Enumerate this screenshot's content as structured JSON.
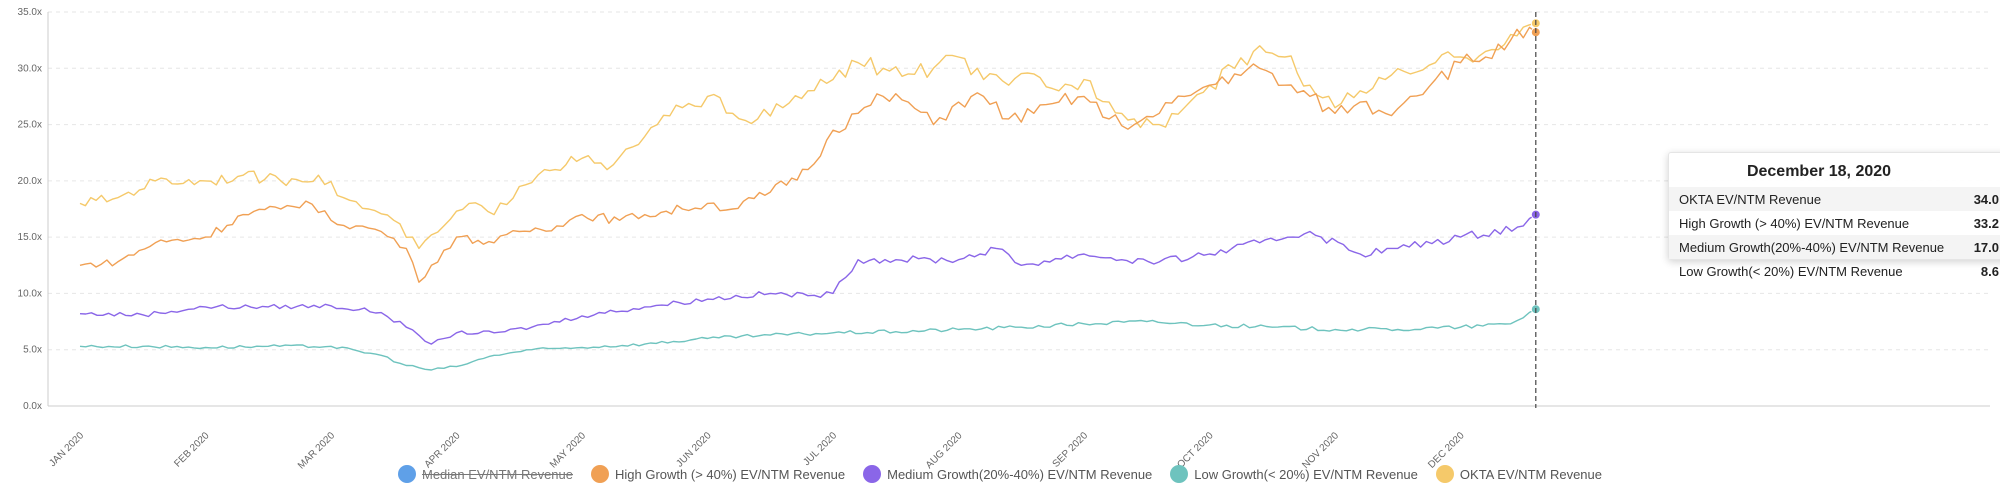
{
  "chart_data": {
    "type": "line",
    "title": "",
    "xlabel": "",
    "ylabel": "",
    "ylim": [
      0,
      35
    ],
    "y_ticks": [
      "0.0x",
      "5.0x",
      "10.0x",
      "15.0x",
      "20.0x",
      "25.0x",
      "30.0x",
      "35.0x"
    ],
    "x_ticks": [
      "JAN 2020",
      "FEB 2020",
      "MAR 2020",
      "APR 2020",
      "MAY 2020",
      "JUN 2020",
      "JUL 2020",
      "AUG 2020",
      "SEP 2020",
      "OCT 2020",
      "NOV 2020",
      "DEC 2020"
    ],
    "grid": true,
    "x_start_month": 0,
    "x_end_month": 11.6,
    "series": [
      {
        "name": "Median EV/NTM Revenue",
        "color": "#5fa0e8",
        "visible": false,
        "values": []
      },
      {
        "name": "High Growth (> 40%) EV/NTM Revenue",
        "color": "#f0a054",
        "visible": true,
        "values": [
          [
            0,
            12.5
          ],
          [
            0.3,
            12.8
          ],
          [
            0.6,
            14.5
          ],
          [
            1.0,
            15.0
          ],
          [
            1.3,
            17.0
          ],
          [
            1.6,
            17.5
          ],
          [
            1.8,
            18.2
          ],
          [
            2.0,
            16.5
          ],
          [
            2.2,
            16.0
          ],
          [
            2.4,
            15.5
          ],
          [
            2.6,
            14.0
          ],
          [
            2.7,
            11.0
          ],
          [
            2.8,
            12.5
          ],
          [
            3.0,
            15.0
          ],
          [
            3.3,
            14.5
          ],
          [
            3.5,
            15.5
          ],
          [
            3.8,
            16.0
          ],
          [
            4.0,
            17.0
          ],
          [
            4.3,
            16.5
          ],
          [
            4.5,
            17.0
          ],
          [
            4.8,
            17.5
          ],
          [
            5.0,
            18.0
          ],
          [
            5.2,
            17.5
          ],
          [
            5.5,
            19.0
          ],
          [
            5.8,
            21.0
          ],
          [
            6.0,
            24.5
          ],
          [
            6.2,
            26.0
          ],
          [
            6.4,
            27.5
          ],
          [
            6.6,
            27.0
          ],
          [
            6.8,
            25.0
          ],
          [
            7.0,
            27.0
          ],
          [
            7.2,
            27.5
          ],
          [
            7.4,
            25.5
          ],
          [
            7.6,
            26.0
          ],
          [
            7.8,
            27.0
          ],
          [
            8.0,
            27.5
          ],
          [
            8.2,
            25.5
          ],
          [
            8.4,
            25.0
          ],
          [
            8.6,
            26.0
          ],
          [
            8.8,
            27.5
          ],
          [
            9.0,
            28.5
          ],
          [
            9.2,
            29.5
          ],
          [
            9.4,
            30.0
          ],
          [
            9.6,
            28.5
          ],
          [
            9.8,
            27.5
          ],
          [
            10.0,
            26.0
          ],
          [
            10.2,
            27.0
          ],
          [
            10.4,
            26.0
          ],
          [
            10.6,
            27.5
          ],
          [
            10.8,
            29.0
          ],
          [
            11.0,
            30.5
          ],
          [
            11.2,
            31.0
          ],
          [
            11.4,
            32.5
          ],
          [
            11.6,
            33.2
          ]
        ]
      },
      {
        "name": "Medium Growth(20%-40%) EV/NTM Revenue",
        "color": "#8a66e8",
        "visible": true,
        "values": [
          [
            0,
            8.2
          ],
          [
            0.5,
            8.1
          ],
          [
            1.0,
            8.8
          ],
          [
            1.5,
            8.8
          ],
          [
            2.0,
            8.9
          ],
          [
            2.4,
            8.3
          ],
          [
            2.6,
            7.0
          ],
          [
            2.8,
            5.5
          ],
          [
            3.0,
            6.5
          ],
          [
            3.3,
            6.5
          ],
          [
            3.6,
            7.0
          ],
          [
            4.0,
            8.0
          ],
          [
            4.5,
            8.8
          ],
          [
            5.0,
            9.5
          ],
          [
            5.5,
            10.0
          ],
          [
            5.8,
            9.8
          ],
          [
            6.0,
            10.0
          ],
          [
            6.2,
            13.0
          ],
          [
            6.5,
            13.0
          ],
          [
            7.0,
            13.0
          ],
          [
            7.3,
            14.0
          ],
          [
            7.5,
            12.5
          ],
          [
            8.0,
            13.5
          ],
          [
            8.3,
            13.0
          ],
          [
            8.6,
            12.8
          ],
          [
            9.0,
            13.5
          ],
          [
            9.4,
            14.5
          ],
          [
            9.8,
            15.5
          ],
          [
            10.2,
            13.5
          ],
          [
            10.5,
            14.0
          ],
          [
            11.0,
            15.0
          ],
          [
            11.5,
            16.0
          ],
          [
            11.6,
            17.0
          ]
        ]
      },
      {
        "name": "Low Growth(< 20%) EV/NTM Revenue",
        "color": "#6ec3be",
        "visible": true,
        "values": [
          [
            0,
            5.3
          ],
          [
            0.5,
            5.3
          ],
          [
            1.0,
            5.2
          ],
          [
            1.5,
            5.3
          ],
          [
            2.0,
            5.3
          ],
          [
            2.4,
            4.5
          ],
          [
            2.6,
            3.6
          ],
          [
            2.8,
            3.2
          ],
          [
            3.0,
            3.5
          ],
          [
            3.3,
            4.5
          ],
          [
            3.6,
            5.0
          ],
          [
            4.0,
            5.2
          ],
          [
            4.5,
            5.5
          ],
          [
            5.0,
            6.0
          ],
          [
            5.5,
            6.3
          ],
          [
            6.0,
            6.5
          ],
          [
            6.5,
            6.6
          ],
          [
            7.0,
            6.8
          ],
          [
            7.5,
            7.0
          ],
          [
            8.0,
            7.3
          ],
          [
            8.5,
            7.5
          ],
          [
            9.0,
            7.2
          ],
          [
            9.5,
            7.0
          ],
          [
            10.0,
            6.8
          ],
          [
            10.5,
            6.8
          ],
          [
            11.0,
            7.0
          ],
          [
            11.4,
            7.3
          ],
          [
            11.6,
            8.6
          ]
        ]
      },
      {
        "name": "OKTA EV/NTM Revenue",
        "color": "#f5c96a",
        "visible": true,
        "values": [
          [
            0,
            18.0
          ],
          [
            0.3,
            18.5
          ],
          [
            0.6,
            20.0
          ],
          [
            1.0,
            20.0
          ],
          [
            1.3,
            20.5
          ],
          [
            1.6,
            20.0
          ],
          [
            1.9,
            20.5
          ],
          [
            2.1,
            18.5
          ],
          [
            2.3,
            17.5
          ],
          [
            2.5,
            16.5
          ],
          [
            2.7,
            14.0
          ],
          [
            2.9,
            16.0
          ],
          [
            3.1,
            18.0
          ],
          [
            3.3,
            17.0
          ],
          [
            3.5,
            19.5
          ],
          [
            3.7,
            21.0
          ],
          [
            4.0,
            22.0
          ],
          [
            4.2,
            21.0
          ],
          [
            4.4,
            23.0
          ],
          [
            4.6,
            25.0
          ],
          [
            4.8,
            26.5
          ],
          [
            5.0,
            27.5
          ],
          [
            5.2,
            26.0
          ],
          [
            5.4,
            25.5
          ],
          [
            5.6,
            26.5
          ],
          [
            5.8,
            28.0
          ],
          [
            6.0,
            29.0
          ],
          [
            6.2,
            30.5
          ],
          [
            6.4,
            30.0
          ],
          [
            6.6,
            29.5
          ],
          [
            6.8,
            30.0
          ],
          [
            7.0,
            31.0
          ],
          [
            7.2,
            29.0
          ],
          [
            7.4,
            28.5
          ],
          [
            7.6,
            29.5
          ],
          [
            7.8,
            28.0
          ],
          [
            8.0,
            29.0
          ],
          [
            8.2,
            27.0
          ],
          [
            8.4,
            25.5
          ],
          [
            8.6,
            25.0
          ],
          [
            8.8,
            26.5
          ],
          [
            9.0,
            28.5
          ],
          [
            9.2,
            30.0
          ],
          [
            9.4,
            32.0
          ],
          [
            9.6,
            31.0
          ],
          [
            9.8,
            28.5
          ],
          [
            10.0,
            26.5
          ],
          [
            10.2,
            28.0
          ],
          [
            10.4,
            29.0
          ],
          [
            10.6,
            29.5
          ],
          [
            10.8,
            30.5
          ],
          [
            11.0,
            31.0
          ],
          [
            11.2,
            31.5
          ],
          [
            11.4,
            33.0
          ],
          [
            11.6,
            34.0
          ]
        ]
      }
    ],
    "crosshair_month": 11.6
  },
  "legend": {
    "items": [
      {
        "label": "Median EV/NTM Revenue",
        "color": "#5fa0e8"
      },
      {
        "label": "High Growth (> 40%) EV/NTM Revenue",
        "color": "#f0a054"
      },
      {
        "label": "Medium Growth(20%-40%) EV/NTM Revenue",
        "color": "#8a66e8"
      },
      {
        "label": "Low Growth(< 20%) EV/NTM Revenue",
        "color": "#6ec3be"
      },
      {
        "label": "OKTA EV/NTM Revenue",
        "color": "#f5c96a"
      }
    ]
  },
  "tooltip": {
    "title": "December 18, 2020",
    "rows": [
      {
        "label": "OKTA EV/NTM Revenue",
        "value": "34.0"
      },
      {
        "label": "High Growth (> 40%) EV/NTM Revenue",
        "value": "33.2"
      },
      {
        "label": "Medium Growth(20%-40%) EV/NTM Revenue",
        "value": "17.0"
      },
      {
        "label": "Low Growth(< 20%) EV/NTM Revenue",
        "value": "8.6"
      }
    ]
  }
}
